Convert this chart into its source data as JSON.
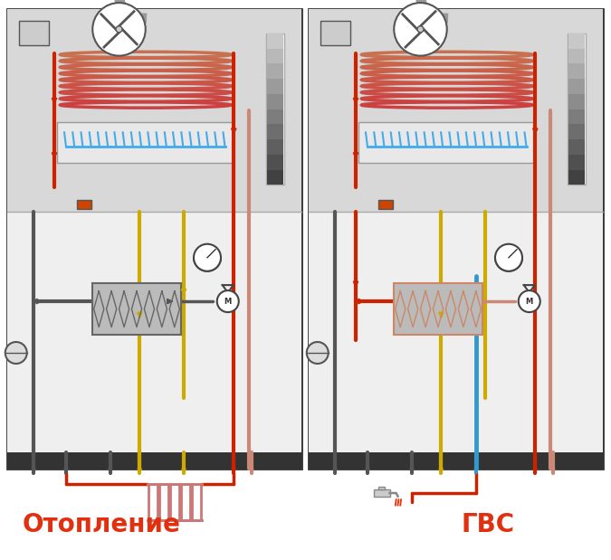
{
  "background_color": "#ffffff",
  "label_left": "Отопление",
  "label_right": "ГВС",
  "label_color": "#e03010",
  "label_fontsize": 20,
  "label_fontweight": "bold",
  "fig_width": 6.75,
  "fig_height": 6.19,
  "dpi": 100,
  "panel_bg": "#e0e0e0",
  "upper_bg": "#d0d0d0",
  "lower_bg": "#e8e8e8",
  "border_color": "#444444",
  "red_pipe": "#cc2200",
  "dark_pipe": "#555555",
  "yellow_pipe": "#ccaa00",
  "blue_pipe": "#3399cc",
  "salmon_pipe": "#cc8877",
  "gray_pipe": "#888888",
  "coil_color_top": "#c87050",
  "coil_color_bottom": "#cc4444",
  "burner_blue": "#44aaee",
  "lw_pipe": 3.0,
  "lw_thin": 1.5
}
